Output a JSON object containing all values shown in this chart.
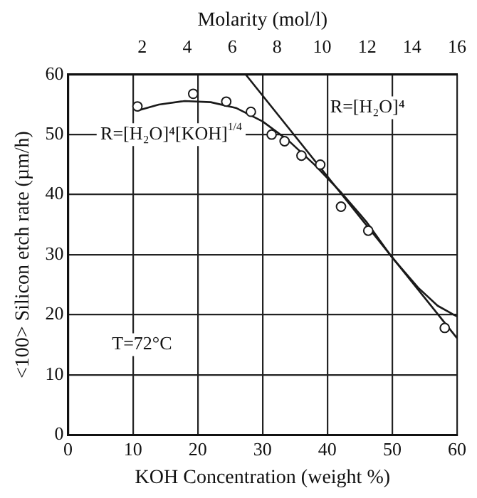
{
  "chart_data": {
    "type": "scatter",
    "xlabel": "KOH Concentration (weight %)",
    "ylabel": "<100> Silicon etch rate (µm/h)",
    "x2label": "Molarity (mol/l)",
    "xlim": [
      0,
      60
    ],
    "xticks": [
      0,
      10,
      20,
      30,
      40,
      50,
      60
    ],
    "ylim": [
      0,
      60
    ],
    "yticks": [
      0,
      10,
      20,
      30,
      40,
      50,
      60
    ],
    "x2lim": [
      -1.3,
      16
    ],
    "x2ticks": [
      2,
      4,
      6,
      8,
      10,
      12,
      14,
      16
    ],
    "grid": true,
    "legend": false,
    "series": [
      {
        "type": "line",
        "color": "#1a1a1a",
        "marker": "none",
        "line_style": "solid",
        "x": [
          10.7,
          14,
          18,
          22,
          26,
          30,
          34,
          38,
          42,
          46,
          50,
          54,
          57,
          60
        ],
        "values": [
          54.0,
          55.0,
          55.6,
          55.4,
          54.4,
          52.2,
          49,
          45,
          40.5,
          35.5,
          29.5,
          24.5,
          21.5,
          19.7
        ]
      },
      {
        "type": "line",
        "color": "#1a1a1a",
        "marker": "none",
        "line_style": "solid",
        "x": [
          27.4,
          60
        ],
        "values": [
          60,
          16.1
        ]
      },
      {
        "color": "#1a1a1a",
        "marker": "circle",
        "x": [
          10.7,
          19.3,
          24.4,
          28.2,
          31.4,
          33.4,
          36.0,
          38.9,
          42.1,
          46.3,
          58.1
        ],
        "values": [
          54.7,
          56.8,
          55.5,
          53.8,
          50.0,
          48.9,
          46.5,
          45.0,
          38.0,
          34.0,
          17.8
        ]
      }
    ],
    "annotations": [
      "R=[H₂O]⁴[KOH]$^{1/4}$",
      "R=[H₂O]⁴",
      "T=72°C"
    ]
  }
}
